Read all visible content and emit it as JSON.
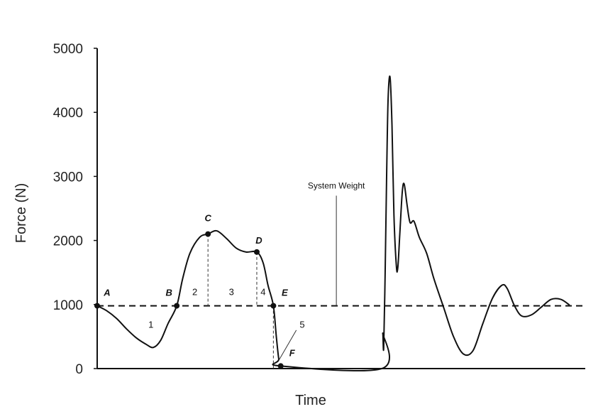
{
  "chart_data": {
    "type": "line",
    "title": "",
    "xlabel": "Time",
    "ylabel": "Force (N)",
    "ylim": [
      0,
      5000
    ],
    "xlim": [
      0,
      100
    ],
    "y_ticks": [
      0,
      1000,
      2000,
      3000,
      4000,
      5000
    ],
    "y_tick_labels": [
      "0",
      "1000",
      "2000",
      "3000",
      "4000",
      "5000"
    ],
    "grid": false,
    "series": [
      {
        "values": [
          [
            0,
            980
          ],
          [
            2,
            900
          ],
          [
            4,
            780
          ],
          [
            6,
            620
          ],
          [
            8,
            480
          ],
          [
            10,
            380
          ],
          [
            11.5,
            330
          ],
          [
            13,
            440
          ],
          [
            14.5,
            700
          ],
          [
            16.3,
            980
          ],
          [
            17.5,
            1400
          ],
          [
            19,
            1800
          ],
          [
            21,
            2050
          ],
          [
            22.7,
            2100
          ],
          [
            24.5,
            2150
          ],
          [
            26.5,
            2030
          ],
          [
            28.5,
            1880
          ],
          [
            30.5,
            1820
          ],
          [
            32.7,
            1820
          ],
          [
            34,
            1650
          ],
          [
            35,
            1300
          ],
          [
            36.1,
            980
          ],
          [
            36.7,
            500
          ],
          [
            37.2,
            150
          ],
          [
            37.6,
            40
          ],
          [
            58.3,
            0
          ],
          [
            58.5,
            550
          ],
          [
            58.7,
            320
          ],
          [
            59,
            1500
          ],
          [
            59.3,
            3000
          ],
          [
            59.6,
            4200
          ],
          [
            60,
            4550
          ],
          [
            60.4,
            3800
          ],
          [
            60.8,
            2400
          ],
          [
            61.3,
            1600
          ],
          [
            61.6,
            1580
          ],
          [
            62,
            2100
          ],
          [
            62.5,
            2750
          ],
          [
            62.9,
            2880
          ],
          [
            63.5,
            2550
          ],
          [
            64.1,
            2280
          ],
          [
            64.9,
            2300
          ],
          [
            66,
            2050
          ],
          [
            67.5,
            1800
          ],
          [
            69,
            1400
          ],
          [
            71,
            950
          ],
          [
            73,
            500
          ],
          [
            75,
            230
          ],
          [
            77,
            280
          ],
          [
            79,
            700
          ],
          [
            81,
            1100
          ],
          [
            82.9,
            1300
          ],
          [
            84,
            1250
          ],
          [
            85.5,
            980
          ],
          [
            87,
            820
          ],
          [
            89,
            840
          ],
          [
            91,
            960
          ],
          [
            93,
            1080
          ],
          [
            95,
            1080
          ],
          [
            96.8,
            990
          ]
        ]
      }
    ],
    "reference_line": {
      "label": "System Weight",
      "value": 980
    },
    "points": [
      {
        "label": "A",
        "x": 0,
        "y": 980
      },
      {
        "label": "B",
        "x": 16.3,
        "y": 980
      },
      {
        "label": "C",
        "x": 22.7,
        "y": 2100
      },
      {
        "label": "D",
        "x": 32.7,
        "y": 1820
      },
      {
        "label": "E",
        "x": 36.1,
        "y": 980
      },
      {
        "label": "F",
        "x": 37.6,
        "y": 40
      }
    ],
    "phases": [
      {
        "label": "1",
        "x": 11,
        "y": 640
      },
      {
        "label": "2",
        "x": 20,
        "y": 1150
      },
      {
        "label": "3",
        "x": 27.5,
        "y": 1150
      },
      {
        "label": "4",
        "x": 34,
        "y": 1150
      },
      {
        "label": "5",
        "x": 42,
        "y": 640
      }
    ]
  }
}
